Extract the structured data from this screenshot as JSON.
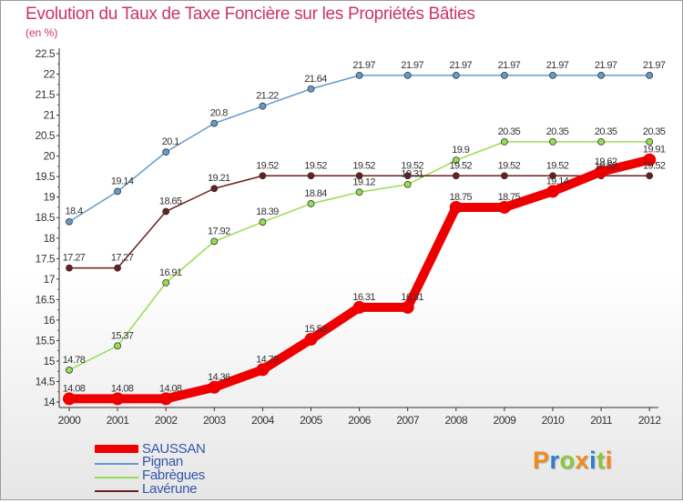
{
  "title": "Evolution du Taux de Taxe Foncière sur les Propriétés Bâties",
  "unit_label": "(en %)",
  "colors": {
    "title": "#cc3366",
    "legend_text": "#3355aa",
    "SAUSSAN": "#ee0000",
    "Pignan": "#6699cc",
    "Fabrègues": "#99dd55",
    "Lavérune": "#6b1f1f"
  },
  "chart_data": {
    "type": "line",
    "title": "Evolution du Taux de Taxe Foncière sur les Propriétés Bâties",
    "ylabel": "(en %)",
    "xlabel": "",
    "x": [
      "2000",
      "2001",
      "2002",
      "2003",
      "2004",
      "2005",
      "2006",
      "2007",
      "2008",
      "2009",
      "2010",
      "2011",
      "2012"
    ],
    "ylim": [
      14,
      22.5
    ],
    "yticks": [
      "14",
      "14.5",
      "15",
      "15.5",
      "16",
      "16.5",
      "17",
      "17.5",
      "18",
      "18.5",
      "19",
      "19.5",
      "20",
      "20.5",
      "21",
      "21.5",
      "22",
      "22.5"
    ],
    "grid": false,
    "legend_position": "bottom-left",
    "series": [
      {
        "name": "SAUSSAN",
        "values": [
          14.08,
          14.08,
          14.08,
          14.36,
          14.79,
          15.53,
          16.31,
          16.31,
          18.75,
          18.75,
          19.14,
          19.62,
          19.91
        ]
      },
      {
        "name": "Pignan",
        "values": [
          18.4,
          19.14,
          20.1,
          20.8,
          21.22,
          21.64,
          21.97,
          21.97,
          21.97,
          21.97,
          21.97,
          21.97,
          21.97
        ]
      },
      {
        "name": "Fabrègues",
        "values": [
          14.78,
          15.37,
          16.91,
          17.92,
          18.39,
          18.84,
          19.12,
          19.31,
          19.9,
          20.35,
          20.35,
          20.35,
          20.35
        ]
      },
      {
        "name": "Lavérune",
        "values": [
          17.27,
          17.27,
          18.65,
          19.21,
          19.52,
          19.52,
          19.52,
          19.52,
          19.52,
          19.52,
          19.52,
          19.52,
          19.52
        ]
      }
    ]
  },
  "legend": [
    {
      "label": "SAUSSAN"
    },
    {
      "label": "Pignan"
    },
    {
      "label": "Fabrègues"
    },
    {
      "label": "Lavérune"
    }
  ],
  "logo": {
    "letters": [
      "P",
      "r",
      "o",
      "x",
      "i",
      "t",
      "i"
    ],
    "colors": [
      "#f08a1d",
      "#2c7fd0",
      "#8cc63f",
      "#f08a1d",
      "#2c7fd0",
      "#8cc63f",
      "#f08a1d"
    ]
  }
}
